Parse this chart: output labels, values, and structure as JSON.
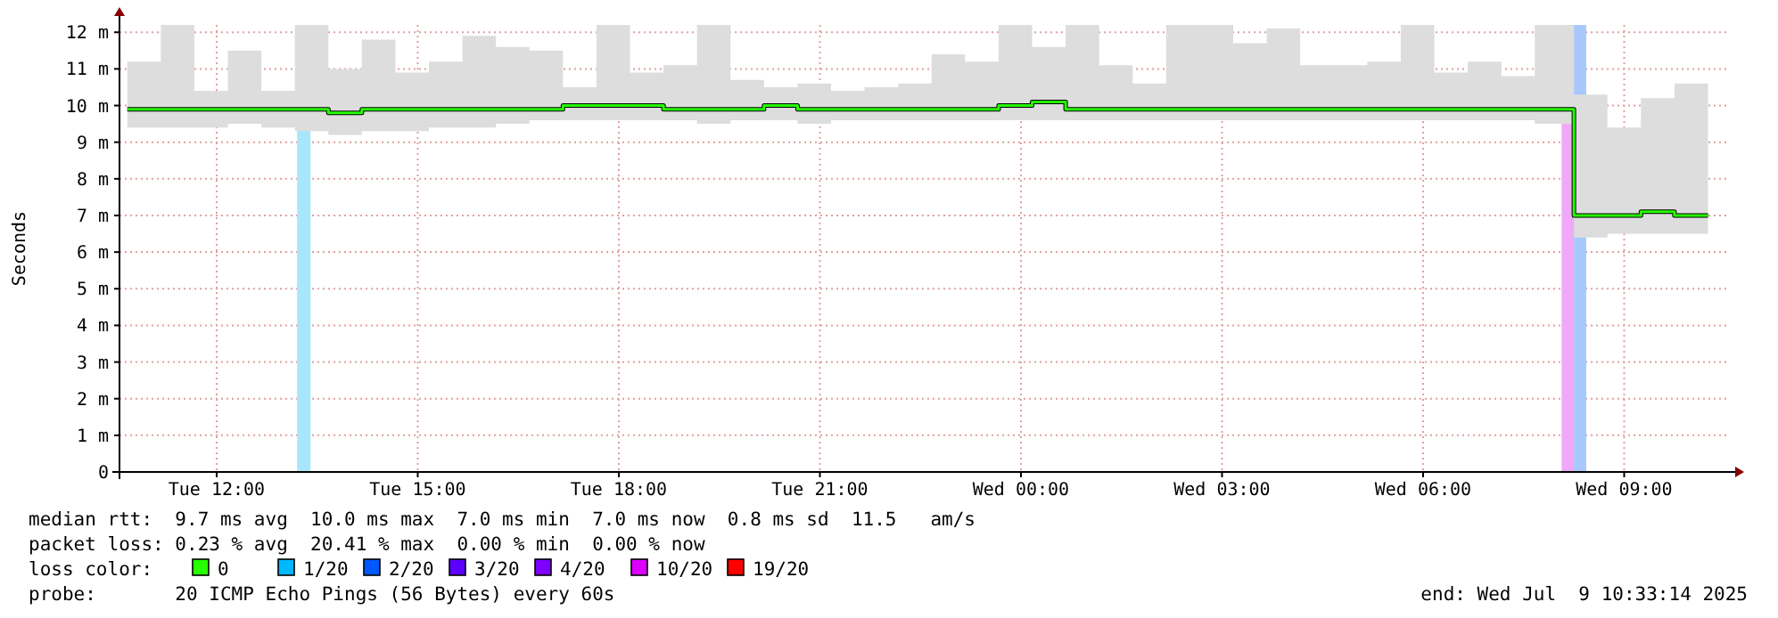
{
  "chart_data": {
    "type": "step",
    "ylabel": "Seconds",
    "legend_title": "loss color:",
    "legend": "bottom",
    "grid": true,
    "line_style": "solid",
    "marker": "none",
    "xlim": [
      "2025-07-08T10:33",
      "2025-07-09T10:33"
    ],
    "xticks": [
      {
        "value": "2025-07-08T12:00",
        "label": "Tue 12:00"
      },
      {
        "value": "2025-07-08T15:00",
        "label": "Tue 15:00"
      },
      {
        "value": "2025-07-08T18:00",
        "label": "Tue 18:00"
      },
      {
        "value": "2025-07-08T21:00",
        "label": "Tue 21:00"
      },
      {
        "value": "2025-07-09T00:00",
        "label": "Wed 00:00"
      },
      {
        "value": "2025-07-09T03:00",
        "label": "Wed 03:00"
      },
      {
        "value": "2025-07-09T06:00",
        "label": "Wed 06:00"
      },
      {
        "value": "2025-07-09T09:00",
        "label": "Wed 09:00"
      }
    ],
    "ylim": [
      0,
      12.2
    ],
    "yticks": [
      0,
      {
        "value": 1,
        "label": "1 m"
      },
      {
        "value": 2,
        "label": "2 m"
      },
      {
        "value": 3,
        "label": "3 m"
      },
      {
        "value": 4,
        "label": "4 m"
      },
      {
        "value": 5,
        "label": "5 m"
      },
      {
        "value": 6,
        "label": "6 m"
      },
      {
        "value": 7,
        "label": "7 m"
      },
      {
        "value": 8,
        "label": "8 m"
      },
      {
        "value": 9,
        "label": "9 m"
      },
      {
        "value": 10,
        "label": "10 m"
      },
      {
        "value": 11,
        "label": "11 m"
      },
      {
        "value": 12,
        "label": "12 m"
      }
    ],
    "x": [
      "2025-07-08T10:40",
      "2025-07-08T11:10",
      "2025-07-08T11:40",
      "2025-07-08T12:10",
      "2025-07-08T12:40",
      "2025-07-08T13:10",
      "2025-07-08T13:40",
      "2025-07-08T14:10",
      "2025-07-08T14:40",
      "2025-07-08T15:10",
      "2025-07-08T15:40",
      "2025-07-08T16:10",
      "2025-07-08T16:40",
      "2025-07-08T17:10",
      "2025-07-08T17:40",
      "2025-07-08T18:10",
      "2025-07-08T18:40",
      "2025-07-08T19:10",
      "2025-07-08T19:40",
      "2025-07-08T20:10",
      "2025-07-08T20:40",
      "2025-07-08T21:10",
      "2025-07-08T21:40",
      "2025-07-08T22:10",
      "2025-07-08T22:40",
      "2025-07-08T23:10",
      "2025-07-08T23:40",
      "2025-07-09T00:10",
      "2025-07-09T00:40",
      "2025-07-09T01:10",
      "2025-07-09T01:40",
      "2025-07-09T02:10",
      "2025-07-09T02:40",
      "2025-07-09T03:10",
      "2025-07-09T03:40",
      "2025-07-09T04:10",
      "2025-07-09T04:40",
      "2025-07-09T05:10",
      "2025-07-09T05:40",
      "2025-07-09T06:10",
      "2025-07-09T06:40",
      "2025-07-09T07:10",
      "2025-07-09T07:40",
      "2025-07-09T08:15",
      "2025-07-09T08:45",
      "2025-07-09T09:15",
      "2025-07-09T09:45",
      "2025-07-09T10:15"
    ],
    "series": [
      {
        "name": "0",
        "color": "#26ff00",
        "values": [
          9.9,
          9.9,
          9.9,
          9.9,
          9.9,
          9.9,
          9.8,
          9.9,
          9.9,
          9.9,
          9.9,
          9.9,
          9.9,
          10,
          10,
          10,
          9.9,
          9.9,
          9.9,
          10,
          9.9,
          9.9,
          9.9,
          9.9,
          9.9,
          9.9,
          10,
          10.1,
          9.9,
          9.9,
          9.9,
          9.9,
          9.9,
          9.9,
          9.9,
          9.9,
          9.9,
          9.9,
          9.9,
          9.9,
          9.9,
          9.9,
          9.9,
          7,
          7,
          7.1,
          7,
          7
        ],
        "lower": [
          9.4,
          9.4,
          9.4,
          9.5,
          9.4,
          9.3,
          9.2,
          9.3,
          9.3,
          9.4,
          9.4,
          9.5,
          9.6,
          9.6,
          9.6,
          9.6,
          9.6,
          9.5,
          9.6,
          9.6,
          9.5,
          9.6,
          9.6,
          9.6,
          9.6,
          9.6,
          9.6,
          9.6,
          9.6,
          9.6,
          9.6,
          9.6,
          9.6,
          9.6,
          9.6,
          9.6,
          9.6,
          9.6,
          9.6,
          9.6,
          9.6,
          9.6,
          9.5,
          6.4,
          6.5,
          6.5,
          6.5,
          6.6
        ],
        "upper": [
          11.2,
          12.2,
          10.4,
          11.5,
          10.4,
          12.2,
          11,
          11.8,
          10.9,
          11.2,
          11.9,
          11.6,
          11.5,
          10.5,
          12.2,
          10.9,
          11.1,
          12.2,
          10.7,
          10.5,
          10.6,
          10.4,
          10.5,
          10.6,
          11.4,
          11.2,
          12.2,
          11.6,
          12.2,
          11.1,
          10.6,
          12.2,
          12.2,
          11.7,
          12.1,
          11.1,
          11.1,
          11.2,
          12.2,
          10.9,
          11.2,
          10.8,
          12.2,
          10.3,
          9.4,
          10.2,
          10.6,
          9.3
        ]
      },
      {
        "name": "1/20",
        "color": "#00b8ff",
        "values": [
          null,
          null,
          null,
          null,
          null,
          null,
          null,
          null,
          null,
          null,
          null,
          null,
          null,
          null,
          null,
          null,
          null,
          null,
          null,
          null,
          null,
          null,
          null,
          null,
          null,
          null,
          null,
          null,
          null,
          null,
          null,
          null,
          null,
          null,
          null,
          null,
          null,
          null,
          null,
          null,
          null,
          null,
          null,
          null,
          null,
          null,
          null,
          null
        ]
      },
      {
        "name": "2/20",
        "color": "#0059ff",
        "values": [
          null,
          null,
          null,
          null,
          null,
          null,
          null,
          null,
          null,
          null,
          null,
          null,
          null,
          null,
          null,
          null,
          null,
          null,
          null,
          null,
          null,
          null,
          null,
          null,
          null,
          null,
          null,
          null,
          null,
          null,
          null,
          null,
          null,
          null,
          null,
          null,
          null,
          null,
          null,
          null,
          null,
          null,
          null,
          null,
          null,
          null,
          null,
          null
        ]
      },
      {
        "name": "3/20",
        "color": "#5e00ff",
        "values": [
          null,
          null,
          null,
          null,
          null,
          null,
          null,
          null,
          null,
          null,
          null,
          null,
          null,
          null,
          null,
          null,
          null,
          null,
          null,
          null,
          null,
          null,
          null,
          null,
          null,
          null,
          null,
          null,
          null,
          null,
          null,
          null,
          null,
          null,
          null,
          null,
          null,
          null,
          null,
          null,
          null,
          null,
          null,
          null,
          null,
          null,
          null,
          null
        ]
      },
      {
        "name": "4/20",
        "color": "#7e00ff",
        "values": [
          null,
          null,
          null,
          null,
          null,
          null,
          null,
          null,
          null,
          null,
          null,
          null,
          null,
          null,
          null,
          null,
          null,
          null,
          null,
          null,
          null,
          null,
          null,
          null,
          null,
          null,
          null,
          null,
          null,
          null,
          null,
          null,
          null,
          null,
          null,
          null,
          null,
          null,
          null,
          null,
          null,
          null,
          null,
          null,
          null,
          null,
          null,
          null
        ]
      },
      {
        "name": "10/20",
        "color": "#dd00ff",
        "values": [
          null,
          null,
          null,
          null,
          null,
          null,
          null,
          null,
          null,
          null,
          null,
          null,
          null,
          null,
          null,
          null,
          null,
          null,
          null,
          null,
          null,
          null,
          null,
          null,
          null,
          null,
          null,
          null,
          null,
          null,
          null,
          null,
          null,
          null,
          null,
          null,
          null,
          null,
          null,
          null,
          null,
          null,
          null,
          null,
          null,
          null,
          null,
          null
        ]
      },
      {
        "name": "19/20",
        "color": "#ff0000",
        "values": [
          null,
          null,
          null,
          null,
          null,
          null,
          null,
          null,
          null,
          null,
          null,
          null,
          null,
          null,
          null,
          null,
          null,
          null,
          null,
          null,
          null,
          null,
          null,
          null,
          null,
          null,
          null,
          null,
          null,
          null,
          null,
          null,
          null,
          null,
          null,
          null,
          null,
          null,
          null,
          null,
          null,
          null,
          null,
          null,
          null,
          null,
          null,
          null
        ]
      }
    ],
    "bands": [
      {
        "axis": "x",
        "from": "2025-07-08T13:12",
        "to": "2025-07-08T13:24",
        "color": "#a8e6fc"
      },
      {
        "axis": "x",
        "from": "2025-07-09T08:04",
        "to": "2025-07-09T08:15",
        "color": "#f0a8f8"
      },
      {
        "axis": "x",
        "from": "2025-07-09T08:15",
        "to": "2025-07-09T08:26",
        "color": "#a8c8fc"
      }
    ],
    "annotations": [
      "median rtt:  9.7 ms avg  10.0 ms max  7.0 ms min  7.0 ms now  0.8 ms sd  11.5   am/s",
      "packet loss: 0.23 % avg  20.41 % max  0.00 % min  0.00 % now",
      "probe:       20 ICMP Echo Pings (56 Bytes) every 60s",
      "end: Wed Jul  9 10:33:14 2025"
    ]
  }
}
